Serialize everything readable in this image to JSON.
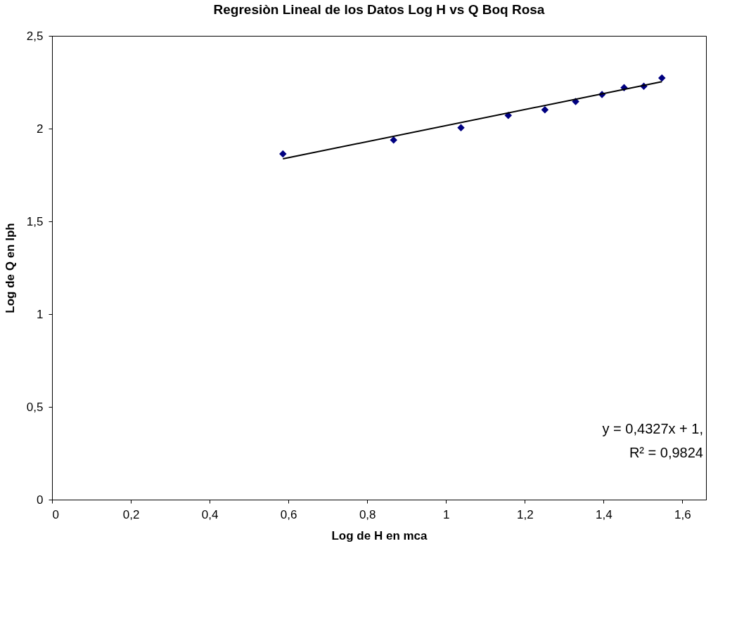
{
  "chart_data": {
    "type": "scatter",
    "title": "Regresiòn Lineal de los Datos Log H vs Q Boq Rosa",
    "xlabel": "Log de H en mca",
    "ylabel": "Log de Q en lph",
    "series": [
      {
        "color": "#000080",
        "marker": "diamond",
        "x": [
          0.586,
          0.867,
          1.038,
          1.158,
          1.251,
          1.329,
          1.396,
          1.452,
          1.502,
          1.548
        ],
        "values": [
          1.864,
          1.938,
          2.005,
          2.071,
          2.101,
          2.146,
          2.184,
          2.221,
          2.228,
          2.273
        ]
      },
      {
        "type": "line",
        "color": "#000000",
        "marker": "none",
        "x": [
          0.586,
          1.548
        ],
        "values": [
          1.837,
          2.253
        ]
      }
    ],
    "xlim": [
      0,
      1.66
    ],
    "ylim": [
      0,
      2.5
    ],
    "xticks": [
      0,
      {
        "value": 0.2,
        "label": "0,2"
      },
      {
        "value": 0.4,
        "label": "0,4"
      },
      {
        "value": 0.6,
        "label": "0,6"
      },
      {
        "value": 0.8,
        "label": "0,8"
      },
      1,
      {
        "value": 1.2,
        "label": "1,2"
      },
      {
        "value": 1.4,
        "label": "1,4"
      },
      {
        "value": 1.6,
        "label": "1,6"
      }
    ],
    "yticks": [
      0,
      {
        "value": 0.5,
        "label": "0,5"
      },
      1,
      {
        "value": 1.5,
        "label": "1,5"
      },
      2,
      {
        "value": 2.5,
        "label": "2,5"
      }
    ],
    "annotations": [
      "y = 0,4327x + 1,",
      "R² = 0,9824"
    ],
    "grid": false
  }
}
